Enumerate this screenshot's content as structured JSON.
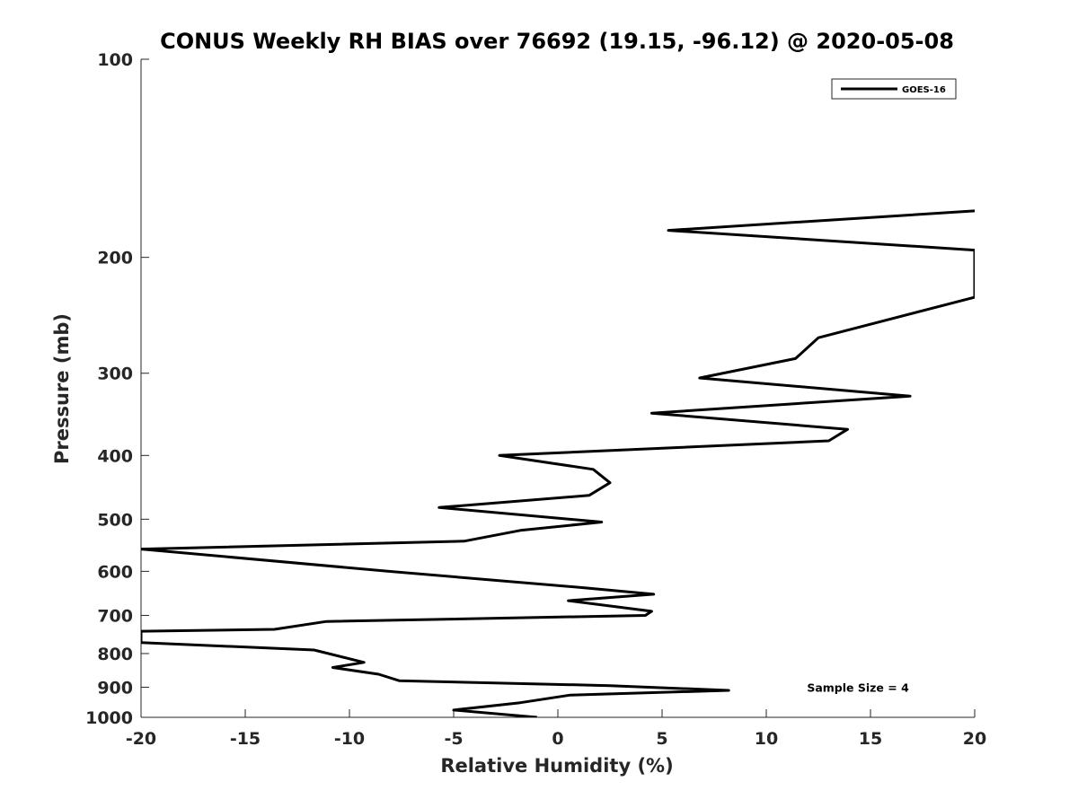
{
  "chart_data": {
    "type": "line",
    "title": "CONUS Weekly RH BIAS over 76692 (19.15, -96.12) @ 2020-05-08",
    "xlabel": "Relative Humidity (%)",
    "ylabel": "Pressure (mb)",
    "xlim": [
      -20,
      20
    ],
    "ylim": [
      100,
      1000
    ],
    "y_scale": "log",
    "y_reversed": true,
    "x_ticks": [
      -20,
      -15,
      -10,
      -5,
      0,
      5,
      10,
      15,
      20
    ],
    "x_tick_labels": [
      "-20",
      "-15",
      "-10",
      "-5",
      "0",
      "5",
      "10",
      "15",
      "20"
    ],
    "y_ticks": [
      100,
      200,
      300,
      400,
      500,
      600,
      700,
      800,
      900,
      1000
    ],
    "y_tick_labels": [
      "100",
      "200",
      "300",
      "400",
      "500",
      "600",
      "700",
      "800",
      "900",
      "1000"
    ],
    "grid": false,
    "legend_position": "top-right",
    "series": [
      {
        "name": "GOES-16",
        "color": "#000000",
        "x": [
          -1.0,
          -5.0,
          -1.8,
          0.6,
          8.2,
          2.5,
          -7.6,
          -8.6,
          -10.8,
          -9.3,
          -11.7,
          -20.0,
          -20.0,
          -13.6,
          -11.1,
          4.2,
          4.5,
          0.5,
          4.6,
          1.1,
          -8.1,
          -20.0,
          -4.5,
          -1.8,
          2.1,
          -5.7,
          1.5,
          2.5,
          1.7,
          -2.8,
          13.0,
          13.9,
          4.5,
          16.9,
          6.8,
          11.4,
          12.5,
          20.0,
          20.0,
          5.3,
          20.0
        ],
        "y": [
          1000,
          975,
          950,
          925,
          910,
          895,
          880,
          860,
          840,
          825,
          790,
          770,
          740,
          735,
          715,
          700,
          690,
          665,
          650,
          635,
          600,
          555,
          540,
          520,
          505,
          480,
          460,
          440,
          420,
          400,
          380,
          365,
          345,
          325,
          305,
          285,
          265,
          230,
          195,
          182,
          170
        ]
      }
    ],
    "annotations": [
      {
        "text": "Sample Size = 4",
        "x": 14.4,
        "y": 900
      }
    ]
  }
}
